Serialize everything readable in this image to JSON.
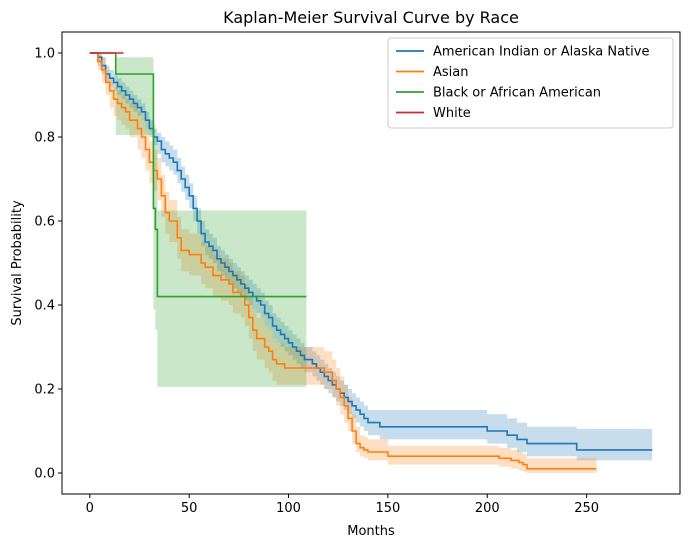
{
  "chart_data": {
    "type": "line",
    "subtype": "step-with-confidence-band",
    "title": "Kaplan-Meier Survival Curve by Race",
    "xlabel": "Months",
    "ylabel": "Survival Probability",
    "xlim": [
      -14,
      297
    ],
    "ylim": [
      -0.05,
      1.05
    ],
    "xticks": [
      0,
      50,
      100,
      150,
      200,
      250
    ],
    "yticks": [
      0.0,
      0.2,
      0.4,
      0.6,
      0.8,
      1.0
    ],
    "xtick_labels": [
      "0",
      "50",
      "100",
      "150",
      "200",
      "250"
    ],
    "ytick_labels": [
      "0.0",
      "0.2",
      "0.4",
      "0.6",
      "0.8",
      "1.0"
    ],
    "grid": false,
    "legend_position": "top-right",
    "series": [
      {
        "name": "American Indian or Alaska Native",
        "color": "#1f77b4",
        "x": [
          0,
          4,
          6,
          8,
          10,
          12,
          14,
          16,
          18,
          20,
          22,
          24,
          26,
          28,
          30,
          32,
          34,
          36,
          38,
          40,
          42,
          44,
          46,
          48,
          50,
          52,
          54,
          56,
          58,
          60,
          62,
          64,
          66,
          68,
          70,
          72,
          74,
          76,
          78,
          80,
          82,
          84,
          86,
          88,
          90,
          92,
          94,
          96,
          98,
          100,
          102,
          104,
          106,
          108,
          110,
          112,
          114,
          116,
          118,
          120,
          122,
          124,
          126,
          128,
          130,
          132,
          134,
          136,
          138,
          140,
          142,
          146,
          150,
          160,
          170,
          180,
          190,
          200,
          206,
          210,
          215,
          220,
          230,
          240,
          245,
          250,
          260,
          270,
          283
        ],
        "y": [
          1.0,
          0.99,
          0.97,
          0.95,
          0.94,
          0.93,
          0.92,
          0.91,
          0.9,
          0.89,
          0.88,
          0.87,
          0.86,
          0.84,
          0.82,
          0.8,
          0.79,
          0.77,
          0.76,
          0.75,
          0.74,
          0.72,
          0.7,
          0.68,
          0.66,
          0.63,
          0.6,
          0.57,
          0.55,
          0.54,
          0.53,
          0.51,
          0.5,
          0.49,
          0.48,
          0.47,
          0.46,
          0.45,
          0.44,
          0.43,
          0.42,
          0.41,
          0.4,
          0.38,
          0.37,
          0.35,
          0.34,
          0.33,
          0.32,
          0.31,
          0.3,
          0.29,
          0.28,
          0.27,
          0.27,
          0.26,
          0.25,
          0.24,
          0.23,
          0.22,
          0.21,
          0.2,
          0.19,
          0.18,
          0.17,
          0.16,
          0.15,
          0.14,
          0.13,
          0.12,
          0.12,
          0.11,
          0.11,
          0.11,
          0.11,
          0.11,
          0.11,
          0.1,
          0.1,
          0.09,
          0.08,
          0.07,
          0.07,
          0.07,
          0.055,
          0.055,
          0.055,
          0.055,
          0.055
        ],
        "ci_lower": [
          1.0,
          0.97,
          0.95,
          0.93,
          0.92,
          0.91,
          0.9,
          0.89,
          0.88,
          0.87,
          0.86,
          0.85,
          0.84,
          0.82,
          0.8,
          0.78,
          0.76,
          0.74,
          0.73,
          0.72,
          0.71,
          0.69,
          0.67,
          0.65,
          0.63,
          0.6,
          0.57,
          0.54,
          0.52,
          0.51,
          0.5,
          0.48,
          0.47,
          0.46,
          0.45,
          0.44,
          0.43,
          0.42,
          0.41,
          0.4,
          0.39,
          0.38,
          0.37,
          0.35,
          0.34,
          0.32,
          0.31,
          0.3,
          0.29,
          0.28,
          0.27,
          0.26,
          0.25,
          0.24,
          0.24,
          0.23,
          0.22,
          0.21,
          0.2,
          0.19,
          0.18,
          0.17,
          0.16,
          0.15,
          0.14,
          0.13,
          0.12,
          0.11,
          0.1,
          0.09,
          0.09,
          0.08,
          0.08,
          0.08,
          0.08,
          0.08,
          0.08,
          0.07,
          0.07,
          0.06,
          0.05,
          0.04,
          0.04,
          0.04,
          0.03,
          0.03,
          0.03,
          0.03,
          0.03
        ],
        "ci_upper": [
          1.0,
          1.0,
          0.99,
          0.97,
          0.96,
          0.95,
          0.94,
          0.93,
          0.92,
          0.91,
          0.9,
          0.89,
          0.88,
          0.86,
          0.84,
          0.82,
          0.81,
          0.8,
          0.79,
          0.78,
          0.77,
          0.75,
          0.73,
          0.71,
          0.69,
          0.66,
          0.63,
          0.6,
          0.58,
          0.57,
          0.56,
          0.54,
          0.53,
          0.52,
          0.51,
          0.5,
          0.49,
          0.48,
          0.47,
          0.46,
          0.45,
          0.44,
          0.43,
          0.41,
          0.4,
          0.38,
          0.37,
          0.36,
          0.35,
          0.34,
          0.33,
          0.32,
          0.31,
          0.3,
          0.3,
          0.29,
          0.28,
          0.27,
          0.26,
          0.25,
          0.24,
          0.23,
          0.22,
          0.21,
          0.2,
          0.19,
          0.18,
          0.17,
          0.16,
          0.15,
          0.15,
          0.15,
          0.15,
          0.15,
          0.15,
          0.15,
          0.15,
          0.14,
          0.14,
          0.13,
          0.12,
          0.11,
          0.11,
          0.11,
          0.105,
          0.105,
          0.105,
          0.105,
          0.105
        ]
      },
      {
        "name": "Asian",
        "color": "#ff7f0e",
        "x": [
          0,
          4,
          6,
          8,
          10,
          12,
          14,
          16,
          18,
          20,
          24,
          26,
          28,
          30,
          32,
          34,
          36,
          38,
          40,
          44,
          46,
          50,
          52,
          56,
          58,
          62,
          66,
          70,
          72,
          76,
          78,
          80,
          82,
          84,
          88,
          90,
          92,
          94,
          98,
          100,
          108,
          110,
          118,
          122,
          124,
          126,
          128,
          130,
          132,
          134,
          136,
          138,
          140,
          150,
          160,
          170,
          180,
          190,
          200,
          206,
          212,
          216,
          218,
          220,
          240,
          255
        ],
        "y": [
          1.0,
          0.98,
          0.96,
          0.93,
          0.91,
          0.89,
          0.88,
          0.87,
          0.86,
          0.84,
          0.82,
          0.8,
          0.77,
          0.74,
          0.72,
          0.7,
          0.66,
          0.62,
          0.6,
          0.56,
          0.53,
          0.52,
          0.52,
          0.5,
          0.49,
          0.47,
          0.46,
          0.45,
          0.43,
          0.42,
          0.4,
          0.37,
          0.34,
          0.32,
          0.3,
          0.29,
          0.27,
          0.26,
          0.25,
          0.25,
          0.25,
          0.25,
          0.24,
          0.22,
          0.2,
          0.18,
          0.16,
          0.13,
          0.1,
          0.07,
          0.06,
          0.055,
          0.05,
          0.04,
          0.04,
          0.04,
          0.04,
          0.04,
          0.04,
          0.035,
          0.03,
          0.025,
          0.02,
          0.01,
          0.01,
          0.01
        ],
        "ci_lower": [
          1.0,
          0.96,
          0.93,
          0.9,
          0.87,
          0.85,
          0.84,
          0.83,
          0.82,
          0.8,
          0.77,
          0.75,
          0.72,
          0.69,
          0.67,
          0.65,
          0.61,
          0.57,
          0.55,
          0.51,
          0.48,
          0.47,
          0.47,
          0.45,
          0.44,
          0.42,
          0.41,
          0.4,
          0.38,
          0.37,
          0.35,
          0.32,
          0.29,
          0.27,
          0.25,
          0.24,
          0.22,
          0.21,
          0.21,
          0.21,
          0.21,
          0.21,
          0.2,
          0.18,
          0.16,
          0.14,
          0.12,
          0.1,
          0.07,
          0.05,
          0.04,
          0.035,
          0.03,
          0.02,
          0.02,
          0.02,
          0.02,
          0.02,
          0.02,
          0.015,
          0.01,
          0.005,
          0.003,
          0.0,
          0.0,
          0.0
        ],
        "ci_upper": [
          1.0,
          1.0,
          0.99,
          0.96,
          0.94,
          0.92,
          0.91,
          0.9,
          0.89,
          0.88,
          0.86,
          0.84,
          0.82,
          0.79,
          0.77,
          0.75,
          0.71,
          0.67,
          0.65,
          0.61,
          0.58,
          0.57,
          0.57,
          0.55,
          0.54,
          0.52,
          0.51,
          0.5,
          0.48,
          0.47,
          0.45,
          0.42,
          0.39,
          0.37,
          0.35,
          0.34,
          0.32,
          0.31,
          0.3,
          0.3,
          0.3,
          0.3,
          0.29,
          0.27,
          0.25,
          0.23,
          0.21,
          0.18,
          0.14,
          0.11,
          0.09,
          0.085,
          0.08,
          0.065,
          0.065,
          0.065,
          0.065,
          0.065,
          0.065,
          0.06,
          0.055,
          0.05,
          0.045,
          0.035,
          0.035,
          0.035
        ]
      },
      {
        "name": "Black or African American",
        "color": "#2ca02c",
        "x": [
          0,
          13,
          32,
          33,
          34,
          109
        ],
        "y": [
          1.0,
          0.95,
          0.63,
          0.58,
          0.42,
          0.42
        ],
        "ci_lower": [
          1.0,
          0.805,
          0.39,
          0.34,
          0.205,
          0.205
        ],
        "ci_upper": [
          1.0,
          0.99,
          0.83,
          0.8,
          0.625,
          0.625
        ]
      },
      {
        "name": "White",
        "color": "#d62728",
        "x": [
          0,
          17
        ],
        "y": [
          1.0,
          1.0
        ]
      }
    ]
  }
}
